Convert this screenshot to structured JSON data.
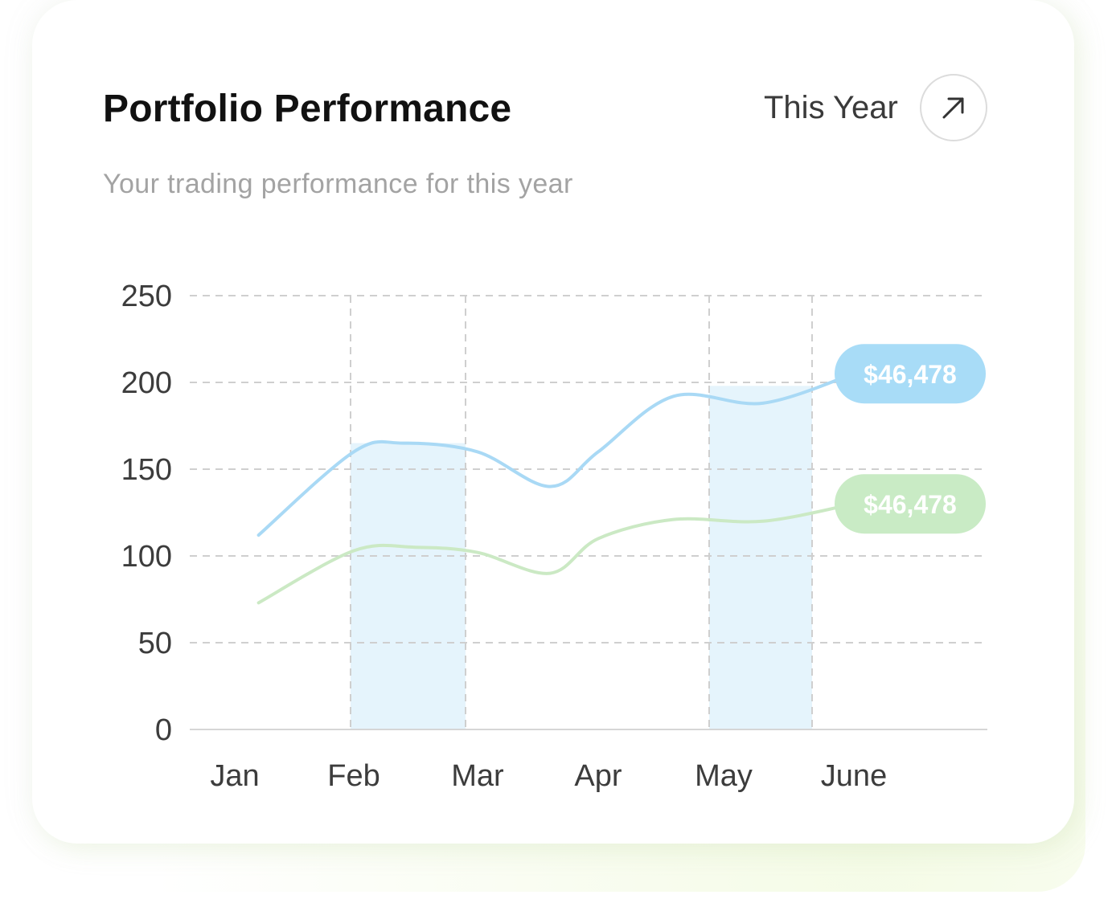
{
  "header": {
    "title": "Portfolio Performance",
    "subtitle": "Your trading performance for this year",
    "period_label": "This Year",
    "period_icon": "arrow-up-right-icon"
  },
  "colors": {
    "series_blue": "#a9d9f5",
    "series_green": "#cbe9c4",
    "band_fill": "#e5f4fc",
    "badge_blue": "#a8dcf7",
    "badge_green": "#c9ebc5",
    "grid": "#cfcfcf",
    "tick_text": "#3c3c3c"
  },
  "chart_data": {
    "type": "line",
    "categories": [
      "Jan",
      "Feb",
      "Mar",
      "Apr",
      "May",
      "June"
    ],
    "ylim": [
      0,
      250
    ],
    "yticks": [
      0,
      50,
      100,
      150,
      200,
      250
    ],
    "grid": "dashed",
    "series": [
      {
        "key": "blue",
        "x": [
          0.2,
          1.0,
          1.4,
          2.0,
          2.6,
          3.0,
          3.6,
          4.3,
          5.1
        ],
        "values": [
          112,
          160,
          165,
          160,
          140,
          160,
          192,
          188,
          205
        ],
        "badge": "$46,478"
      },
      {
        "key": "green",
        "x": [
          0.2,
          1.0,
          1.5,
          2.0,
          2.6,
          3.0,
          3.6,
          4.3,
          5.1
        ],
        "values": [
          73,
          103,
          105,
          102,
          90,
          110,
          121,
          120,
          130
        ],
        "badge": "$46,478"
      }
    ],
    "highlight_bands": [
      {
        "from": "Feb",
        "to": "Mar",
        "top": 165
      },
      {
        "from": "May",
        "to": "June",
        "top": 198
      }
    ]
  }
}
